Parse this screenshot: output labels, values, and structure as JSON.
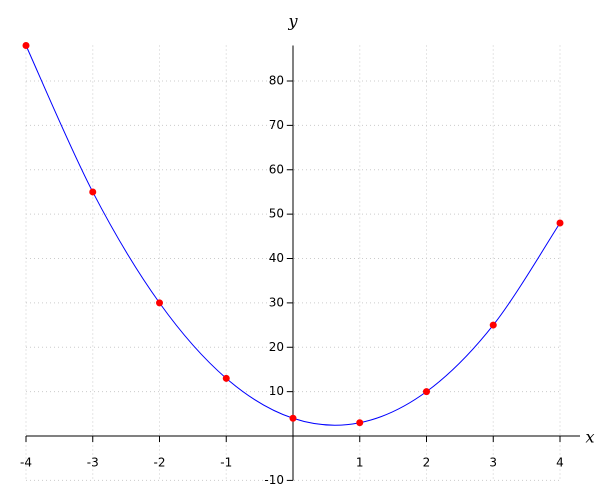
{
  "chart_data": {
    "type": "line",
    "x_label": "x",
    "y_label": "y",
    "x": [
      -4,
      -3,
      -2,
      -1,
      0,
      1,
      2,
      3,
      4
    ],
    "series": [
      {
        "color": "#0000ff",
        "marker_color": "#ff0000",
        "values": [
          88,
          55,
          30,
          13,
          4,
          3,
          10,
          25,
          48
        ]
      }
    ],
    "xlim": [
      -4,
      4
    ],
    "ylim": [
      -10,
      88
    ],
    "xticks": [
      -4,
      -3,
      -2,
      -1,
      1,
      2,
      3,
      4
    ],
    "yticks": [
      -10,
      10,
      20,
      30,
      40,
      50,
      60,
      70,
      80
    ],
    "grid": true
  }
}
